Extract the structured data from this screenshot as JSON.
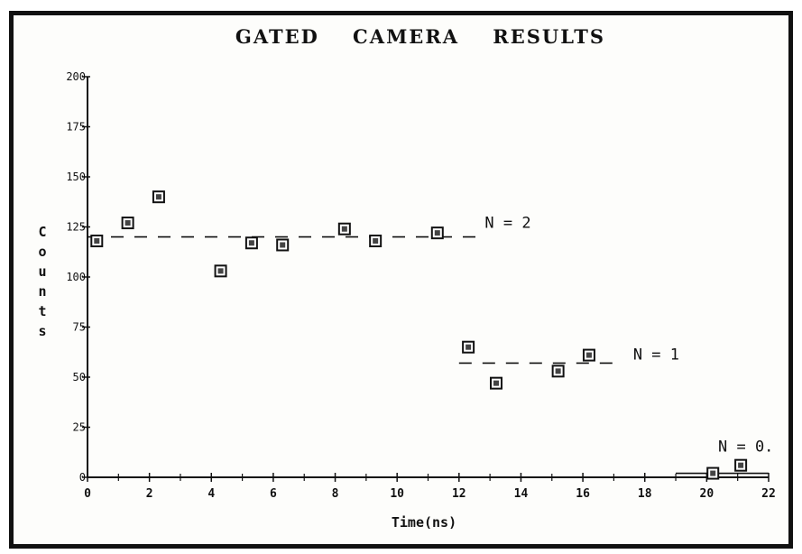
{
  "chart_data": {
    "type": "scatter",
    "title": "GATED    CAMERA    RESULTS",
    "xlabel": "Time(ns)",
    "ylabel": "Counts",
    "xlim": [
      0,
      22
    ],
    "ylim": [
      0,
      200
    ],
    "x_ticks": [
      0,
      2,
      4,
      6,
      8,
      10,
      12,
      14,
      16,
      18,
      20,
      22
    ],
    "x_tick_labels": [
      "0",
      "2",
      "4",
      "6",
      "8",
      "10",
      "12",
      "14",
      "16",
      "18",
      "20",
      "22"
    ],
    "y_ticks": [
      0,
      25,
      50,
      75,
      100,
      125,
      150,
      175,
      200
    ],
    "y_tick_labels": [
      "0",
      "25",
      "50",
      "75",
      "100",
      "125",
      "150",
      "175",
      "200"
    ],
    "grid": false,
    "legend": "none",
    "marker": "square",
    "series": [
      {
        "x": [
          0.3,
          1.3,
          2.3,
          4.3,
          5.3,
          6.3,
          8.3,
          9.3,
          11.3,
          12.3,
          13.2,
          15.2,
          16.2,
          20.2,
          21.1
        ],
        "y": [
          118,
          127,
          140,
          103,
          117,
          116,
          124,
          118,
          122,
          65,
          47,
          53,
          61,
          2,
          6
        ]
      }
    ],
    "reference_lines": [
      {
        "label": "N = 2",
        "y": 120,
        "x_range": [
          0,
          12.6
        ]
      },
      {
        "label": "N = 1",
        "y": 57,
        "x_range": [
          12.0,
          17.1
        ]
      },
      {
        "label": "N = 0.",
        "y": 2,
        "x_range": [
          19.0,
          22.0
        ]
      }
    ]
  }
}
